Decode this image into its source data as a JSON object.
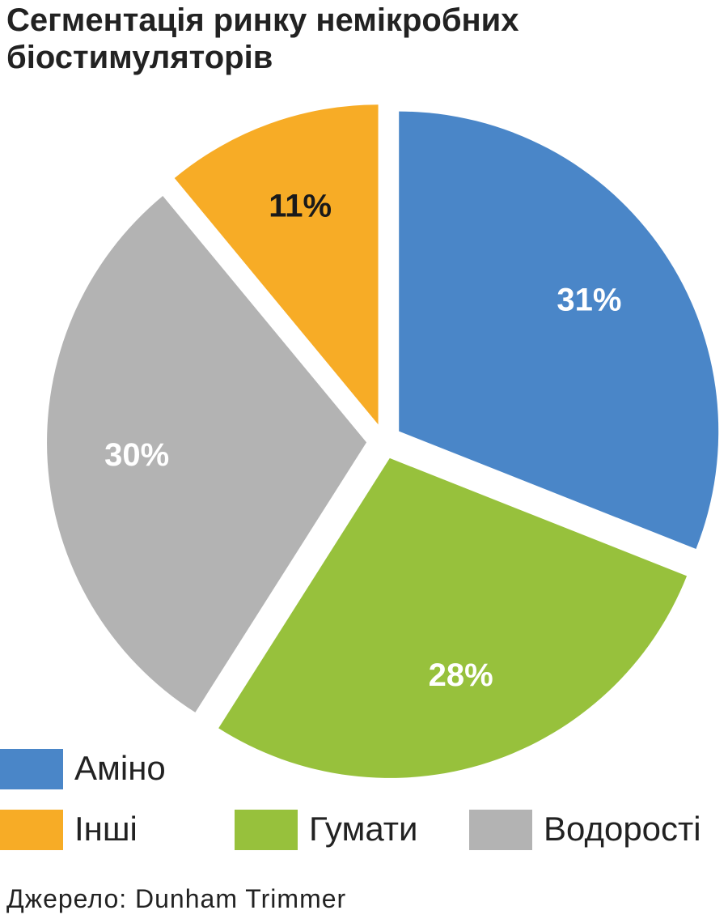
{
  "chart_data": {
    "type": "pie",
    "title": "Сегментація ринку немікробних біостимуляторів",
    "categories": [
      "Аміно",
      "Гумати",
      "Водорості",
      "Інші"
    ],
    "values": [
      31,
      28,
      30,
      11
    ],
    "value_labels": [
      "31%",
      "28%",
      "30%",
      "11%"
    ],
    "colors": [
      "#4a86c8",
      "#97c13c",
      "#b3b3b3",
      "#f7ac26"
    ],
    "label_colors": [
      "#ffffff",
      "#ffffff",
      "#ffffff",
      "#1a1a1a"
    ],
    "source": "Джерело: Dunham Trimmer"
  }
}
